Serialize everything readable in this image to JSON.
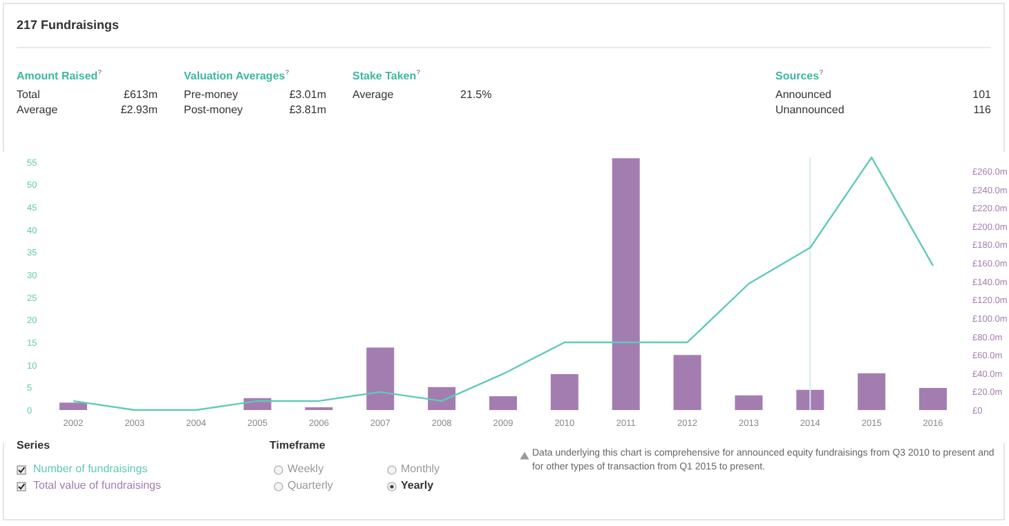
{
  "chart_data": {
    "type": "bar",
    "title": "217 Fundraisings",
    "categories": [
      "2002",
      "2003",
      "2004",
      "2005",
      "2006",
      "2007",
      "2008",
      "2009",
      "2010",
      "2011",
      "2012",
      "2013",
      "2014",
      "2015",
      "2016"
    ],
    "series": [
      {
        "name": "Total value of fundraisings",
        "axis": "y2",
        "color": "#a47db0",
        "values": [
          8,
          0,
          0,
          13,
          3,
          68,
          25,
          15,
          39,
          274,
          60,
          16,
          22,
          40,
          24
        ]
      },
      {
        "name": "Number of fundraisings",
        "type": "line",
        "color": "#5fcab8",
        "values": [
          2,
          0,
          0,
          2,
          2,
          4,
          2,
          8,
          15,
          15,
          15,
          28,
          36,
          56,
          32
        ]
      }
    ],
    "ylim": [
      0,
      56
    ],
    "yticks": [
      0,
      5,
      10,
      15,
      20,
      25,
      30,
      35,
      40,
      45,
      50,
      55
    ],
    "y2lim": [
      0,
      275
    ],
    "y2ticks": [
      {
        "value": 0,
        "label": "£0"
      },
      {
        "value": 20,
        "label": "£20.0m"
      },
      {
        "value": 40,
        "label": "£40.0m"
      },
      {
        "value": 60,
        "label": "£60.0m"
      },
      {
        "value": 80,
        "label": "£80.0m"
      },
      {
        "value": 100,
        "label": "£100.0m"
      },
      {
        "value": 120,
        "label": "£120.0m"
      },
      {
        "value": 140,
        "label": "£140.0m"
      },
      {
        "value": 160,
        "label": "£160.0m"
      },
      {
        "value": 180,
        "label": "£180.0m"
      },
      {
        "value": 200,
        "label": "£200.0m"
      },
      {
        "value": 220,
        "label": "£220.0m"
      },
      {
        "value": 240,
        "label": "£240.0m"
      },
      {
        "value": 260,
        "label": "£260.0m"
      }
    ],
    "ref_lines": [
      {
        "axis": "x",
        "value": "2014",
        "color": "#d6ebe8"
      }
    ],
    "legend": "bottom left",
    "annotations": [
      "Amount Raised$^{?}$",
      "Total",
      "£613m",
      "Average",
      "£2.93m",
      "Valuation Averages$^{?}$",
      "Pre-money",
      "£3.01m",
      "Post-money",
      "£3.81m",
      "Stake Taken$^{?}$",
      "Average",
      "21.5%",
      "Sources$^{?}$",
      "Announced",
      "101",
      "Unannounced",
      "116",
      "Series",
      "Timeframe",
      "Weekly",
      "Monthly",
      "Quarterly",
      "Yearly",
      "Data underlying this chart is comprehensive for announced equity fundraisings from Q3 2010 to present and for other types of transaction from Q1 2015 to present."
    ]
  }
}
